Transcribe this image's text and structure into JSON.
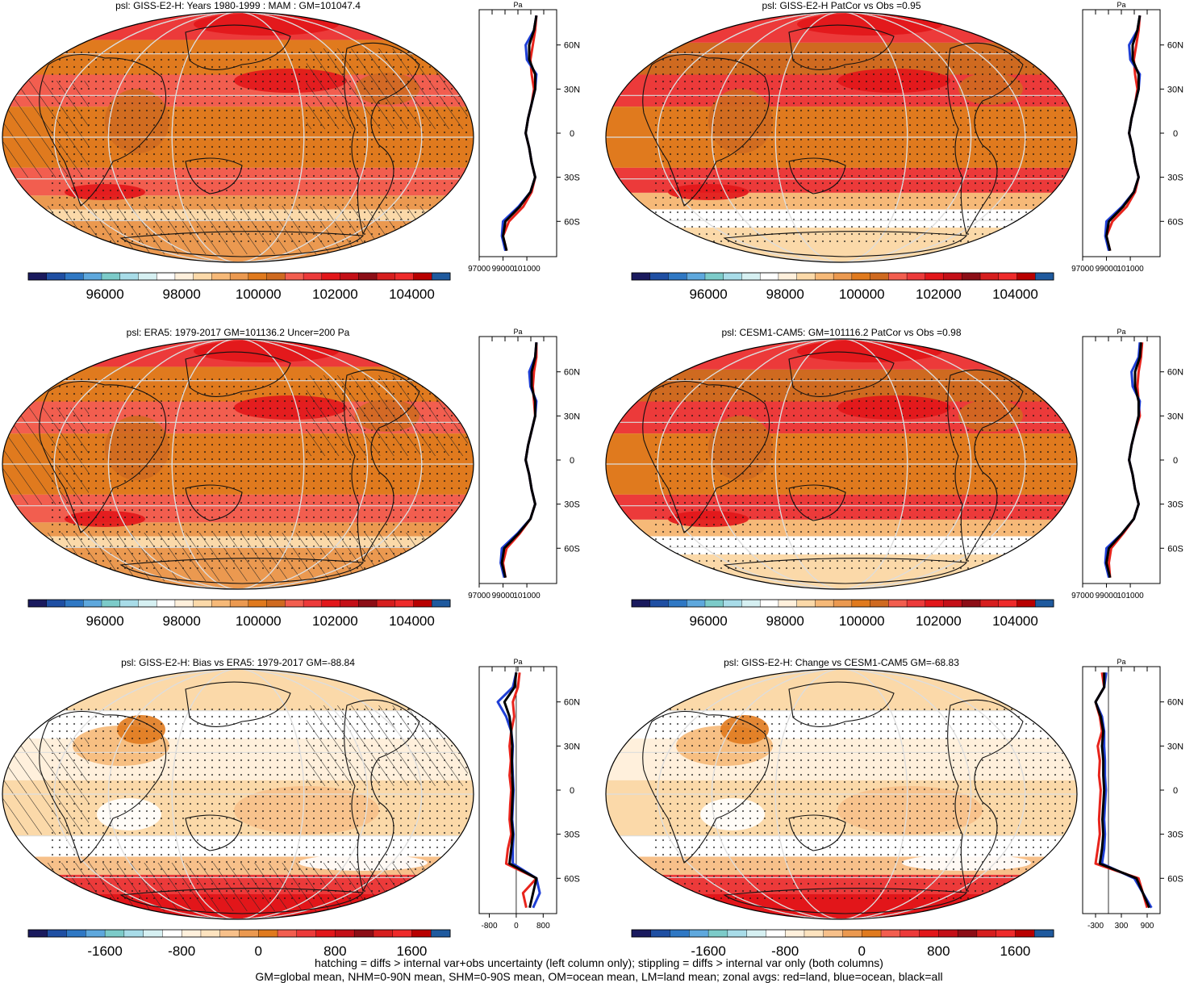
{
  "colors": {
    "land": "#e8241c",
    "ocean": "#1f3fd6",
    "all": "#000000",
    "abs_scale": [
      "#1a1a5e",
      "#1f4fa3",
      "#2f78c4",
      "#5ea8dd",
      "#7ccbc9",
      "#a8dce8",
      "#d6f0f2",
      "#ffffff",
      "#fff0dc",
      "#fbd9a9",
      "#f6b978",
      "#eb9950",
      "#e07a1e",
      "#cf6a20",
      "#f25e4f",
      "#ec3a3a",
      "#e2161a",
      "#c40f17",
      "#8c0e16",
      "#d61e1e",
      "#ee2a2a",
      "#b80000",
      "#1f5a9e"
    ],
    "diff_scale": [
      "#1a1a5e",
      "#1f4fa3",
      "#2f78c4",
      "#5ea8dd",
      "#7ccbc9",
      "#a8dce8",
      "#d6f0f2",
      "#ffffff",
      "#fff0dc",
      "#fde3bf",
      "#f7c08a",
      "#eb9950",
      "#e07a1e",
      "#f25e4f",
      "#ec3a3a",
      "#e2161a",
      "#c40f17",
      "#8c0e16",
      "#d61e1e",
      "#ee2a2a",
      "#b80000",
      "#1f5a9e"
    ]
  },
  "chart_data": [
    {
      "type": "heatmap",
      "title": "psl: GISS-E2-H: Years 1980-1999 : MAM : GM=101047.4",
      "colorbar_labels": [
        "96000",
        "98000",
        "100000",
        "102000",
        "104000"
      ],
      "lat_labels": [
        "60N",
        "30N",
        "0",
        "30S",
        "60S"
      ],
      "zonal_xaxis": {
        "unit": "Pa",
        "ticks": [
          "97000",
          "99000",
          "101000"
        ],
        "xlim": [
          97000,
          103500
        ]
      },
      "zonal_lat": [
        80,
        70,
        60,
        50,
        40,
        30,
        20,
        10,
        0,
        -10,
        -20,
        -30,
        -40,
        -50,
        -60,
        -70,
        -80
      ],
      "series": [
        {
          "name": "land",
          "values": [
            101800,
            101700,
            101500,
            101300,
            101400,
            101600,
            101400,
            101100,
            100900,
            101200,
            101400,
            101700,
            101400,
            100700,
            99500,
            99000,
            99300
          ]
        },
        {
          "name": "ocean",
          "values": [
            101800,
            101600,
            100900,
            101000,
            101800,
            101700,
            101400,
            101100,
            100900,
            101200,
            101400,
            101700,
            101300,
            100300,
            99000,
            98900,
            99200
          ]
        },
        {
          "name": "all",
          "values": [
            101800,
            101600,
            101200,
            101200,
            101700,
            101700,
            101400,
            101100,
            100900,
            101200,
            101400,
            101700,
            101300,
            100400,
            99200,
            99000,
            99300
          ]
        }
      ]
    },
    {
      "type": "heatmap",
      "title": "psl: GISS-E2-H PatCor vs Obs =0.95",
      "colorbar_labels": [
        "96000",
        "98000",
        "100000",
        "102000",
        "104000"
      ],
      "lat_labels": [
        "60N",
        "30N",
        "0",
        "30S",
        "60S"
      ],
      "zonal_xaxis": {
        "unit": "Pa",
        "ticks": [
          "97000",
          "99000",
          "101000"
        ],
        "xlim": [
          97000,
          103500
        ]
      },
      "zonal_lat": [
        80,
        70,
        60,
        50,
        40,
        30,
        20,
        10,
        0,
        -10,
        -20,
        -30,
        -40,
        -50,
        -60,
        -70,
        -80
      ],
      "series": [
        {
          "name": "land",
          "values": [
            101800,
            101700,
            101500,
            101300,
            101400,
            101600,
            101400,
            101100,
            100900,
            101200,
            101400,
            101700,
            101400,
            100700,
            99500,
            99000,
            99300
          ]
        },
        {
          "name": "ocean",
          "values": [
            101800,
            101600,
            100900,
            101000,
            101800,
            101700,
            101400,
            101100,
            100900,
            101200,
            101400,
            101700,
            101300,
            100300,
            99000,
            98900,
            99200
          ]
        },
        {
          "name": "all",
          "values": [
            101800,
            101600,
            101200,
            101200,
            101700,
            101700,
            101400,
            101100,
            100900,
            101200,
            101400,
            101700,
            101300,
            100400,
            99200,
            99000,
            99300
          ]
        }
      ]
    },
    {
      "type": "heatmap",
      "title": "psl: ERA5: 1979-2017 GM=101136.2 Uncer=200 Pa",
      "colorbar_labels": [
        "96000",
        "98000",
        "100000",
        "102000",
        "104000"
      ],
      "lat_labels": [
        "60N",
        "30N",
        "0",
        "30S",
        "60S"
      ],
      "zonal_xaxis": {
        "unit": "Pa",
        "ticks": [
          "97000",
          "99000",
          "101000"
        ],
        "xlim": [
          97000,
          103500
        ]
      },
      "zonal_lat": [
        80,
        70,
        60,
        50,
        40,
        30,
        20,
        10,
        0,
        -10,
        -20,
        -30,
        -40,
        -50,
        -60,
        -70,
        -80
      ],
      "series": [
        {
          "name": "land",
          "values": [
            101800,
            101800,
            101600,
            101500,
            101600,
            101700,
            101400,
            101100,
            100900,
            101200,
            101400,
            101700,
            101300,
            100400,
            99300,
            99000,
            99200
          ]
        },
        {
          "name": "ocean",
          "values": [
            101800,
            101700,
            101200,
            101300,
            101800,
            101700,
            101400,
            101100,
            100900,
            101200,
            101400,
            101700,
            101300,
            100200,
            98900,
            98800,
            99100
          ]
        },
        {
          "name": "all",
          "values": [
            101800,
            101700,
            101400,
            101400,
            101700,
            101700,
            101400,
            101100,
            100900,
            101200,
            101400,
            101700,
            101300,
            100300,
            99100,
            98900,
            99200
          ]
        }
      ]
    },
    {
      "type": "heatmap",
      "title": "psl: CESM1-CAM5: GM=101116.2 PatCor vs Obs =0.98",
      "colorbar_labels": [
        "96000",
        "98000",
        "100000",
        "102000",
        "104000"
      ],
      "lat_labels": [
        "60N",
        "30N",
        "0",
        "30S",
        "60S"
      ],
      "zonal_xaxis": {
        "unit": "Pa",
        "ticks": [
          "97000",
          "99000",
          "101000"
        ],
        "xlim": [
          97000,
          103500
        ]
      },
      "zonal_lat": [
        80,
        70,
        60,
        50,
        40,
        30,
        20,
        10,
        0,
        -10,
        -20,
        -30,
        -40,
        -50,
        -60,
        -70,
        -80
      ],
      "series": [
        {
          "name": "land",
          "values": [
            102000,
            101900,
            101700,
            101600,
            101700,
            101800,
            101400,
            101100,
            100900,
            101200,
            101400,
            101700,
            101300,
            100400,
            99400,
            99200,
            99300
          ]
        },
        {
          "name": "ocean",
          "values": [
            101800,
            101700,
            101100,
            101200,
            101800,
            101700,
            101400,
            101100,
            100900,
            101200,
            101400,
            101700,
            101300,
            100300,
            99000,
            98900,
            99200
          ]
        },
        {
          "name": "all",
          "values": [
            101900,
            101800,
            101400,
            101400,
            101700,
            101700,
            101400,
            101100,
            100900,
            101200,
            101400,
            101700,
            101300,
            100300,
            99200,
            99000,
            99300
          ]
        }
      ]
    },
    {
      "type": "heatmap",
      "title": "psl: GISS-E2-H: Bias vs ERA5: 1979-2017 GM=-88.84",
      "colorbar_labels": [
        "-1600",
        "-800",
        "0",
        "800",
        "1600"
      ],
      "lat_labels": [
        "60N",
        "30N",
        "0",
        "30S",
        "60S"
      ],
      "zonal_xaxis": {
        "unit": "Pa",
        "ticks": [
          "-800",
          "0",
          "800"
        ],
        "xlim": [
          -1100,
          1200
        ]
      },
      "zonal_lat": [
        80,
        70,
        60,
        50,
        40,
        30,
        20,
        10,
        0,
        -10,
        -20,
        -30,
        -40,
        -50,
        -60,
        -70,
        -80
      ],
      "series": [
        {
          "name": "land",
          "values": [
            100,
            50,
            -100,
            -60,
            -150,
            -200,
            -160,
            -200,
            -150,
            -180,
            -200,
            -150,
            -250,
            -300,
            600,
            200,
            300
          ]
        },
        {
          "name": "ocean",
          "values": [
            0,
            -100,
            -550,
            -300,
            -150,
            -100,
            -120,
            -100,
            -80,
            -100,
            -120,
            -80,
            -100,
            -100,
            600,
            700,
            500
          ]
        },
        {
          "name": "all",
          "values": [
            0,
            -50,
            -350,
            -200,
            -150,
            -120,
            -130,
            -120,
            -100,
            -120,
            -140,
            -100,
            -150,
            -200,
            600,
            500,
            400
          ]
        }
      ]
    },
    {
      "type": "heatmap",
      "title": "psl: GISS-E2-H: Change vs CESM1-CAM5 GM=-68.83",
      "colorbar_labels": [
        "-1600",
        "-800",
        "0",
        "800",
        "1600"
      ],
      "lat_labels": [
        "60N",
        "30N",
        "0",
        "30S",
        "60S"
      ],
      "zonal_xaxis": {
        "unit": "Pa",
        "ticks": [
          "-300",
          "300",
          "900"
        ],
        "xlim": [
          -600,
          1200
        ]
      },
      "zonal_lat": [
        80,
        70,
        60,
        50,
        40,
        30,
        20,
        10,
        0,
        -10,
        -20,
        -30,
        -40,
        -50,
        -60,
        -70,
        -80
      ],
      "series": [
        {
          "name": "land",
          "values": [
            -150,
            -100,
            -300,
            -200,
            -150,
            -250,
            -200,
            -220,
            -180,
            -200,
            -220,
            -200,
            -250,
            -300,
            700,
            800,
            900
          ]
        },
        {
          "name": "ocean",
          "values": [
            -50,
            -100,
            -300,
            -150,
            -100,
            -100,
            -80,
            -80,
            -60,
            -80,
            -100,
            -80,
            -100,
            -150,
            600,
            800,
            1000
          ]
        },
        {
          "name": "all",
          "values": [
            -100,
            -100,
            -300,
            -180,
            -120,
            -150,
            -120,
            -120,
            -100,
            -120,
            -140,
            -120,
            -150,
            -200,
            650,
            800,
            950
          ]
        }
      ]
    }
  ],
  "footer": {
    "line1": "hatching = diffs > internal var+obs uncertainty (left column only); stippling = diffs > internal var only (both columns)",
    "line2": "GM=global mean, NHM=0-90N mean, SHM=0-90S mean, OM=ocean mean, LM=land mean; zonal avgs: red=land, blue=ocean, black=all"
  }
}
